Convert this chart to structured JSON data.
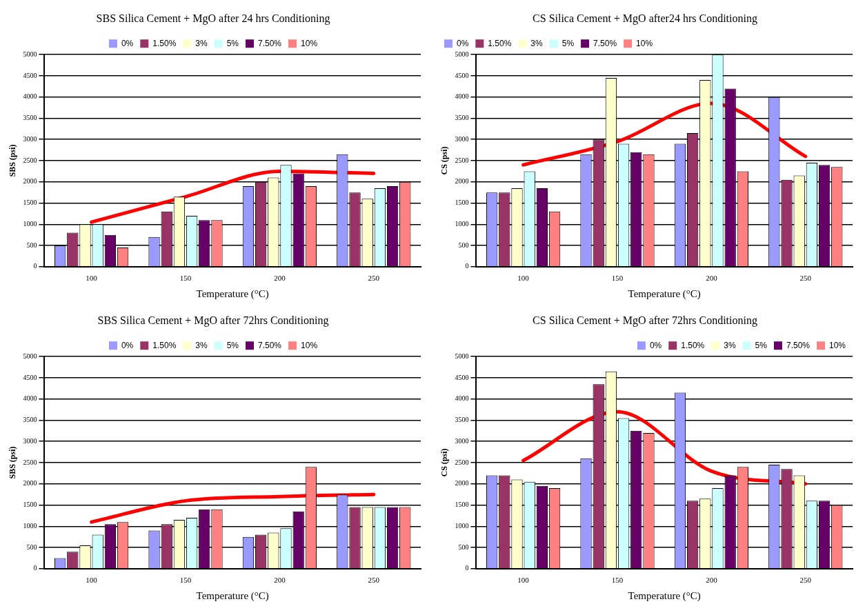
{
  "chart_data": [
    {
      "type": "bar",
      "title": "SBS Silica Cement + MgO after 24 hrs Conditioning",
      "xlabel": "Temperature (°C)",
      "ylabel": "SBS (psi)",
      "categories": [
        "100",
        "150",
        "200",
        "250"
      ],
      "ylim": [
        0,
        5000
      ],
      "yticks": [
        0,
        500,
        1000,
        1500,
        2000,
        2500,
        3000,
        3500,
        4000,
        4500,
        5000
      ],
      "grid": "y",
      "legend": "top",
      "series": [
        {
          "name": "0%",
          "color": "#9999ff",
          "values": [
            500,
            700,
            1900,
            2650
          ]
        },
        {
          "name": "1.50%",
          "color": "#993366",
          "values": [
            800,
            1300,
            2000,
            1750
          ]
        },
        {
          "name": "3%",
          "color": "#ffffcc",
          "values": [
            1000,
            1650,
            2100,
            1600
          ]
        },
        {
          "name": "5%",
          "color": "#ccffff",
          "values": [
            1000,
            1200,
            2400,
            1850
          ]
        },
        {
          "name": "7.50%",
          "color": "#660066",
          "values": [
            750,
            1100,
            2200,
            1900
          ]
        },
        {
          "name": "10%",
          "color": "#ff8080",
          "values": [
            450,
            1100,
            1900,
            2000
          ]
        },
        {
          "type": "line",
          "color": "#ff0000",
          "values": [
            1050,
            1650,
            2250,
            2200
          ]
        }
      ]
    },
    {
      "type": "bar",
      "title": "CS Silica Cement + MgO after24 hrs Conditioning",
      "xlabel": "Temperature (°C)",
      "ylabel": "CS (psi)",
      "categories": [
        "100",
        "150",
        "200",
        "250"
      ],
      "ylim": [
        0,
        5000
      ],
      "yticks": [
        0,
        500,
        1000,
        1500,
        2000,
        2500,
        3000,
        3500,
        4000,
        4500,
        5000
      ],
      "grid": "y",
      "legend": "top left",
      "series": [
        {
          "name": "0%",
          "color": "#9999ff",
          "values": [
            1750,
            2650,
            2900,
            4000
          ]
        },
        {
          "name": "1.50%",
          "color": "#993366",
          "values": [
            1750,
            3000,
            3150,
            2050
          ]
        },
        {
          "name": "3%",
          "color": "#ffffcc",
          "values": [
            1850,
            4450,
            4400,
            2150
          ]
        },
        {
          "name": "5%",
          "color": "#ccffff",
          "values": [
            2250,
            2900,
            5000,
            2450
          ]
        },
        {
          "name": "7.50%",
          "color": "#660066",
          "values": [
            1850,
            2700,
            4200,
            2400
          ]
        },
        {
          "name": "10%",
          "color": "#ff8080",
          "values": [
            1300,
            2650,
            2250,
            2350
          ]
        },
        {
          "type": "line",
          "color": "#ff0000",
          "values": [
            2400,
            2950,
            3850,
            2600
          ]
        }
      ]
    },
    {
      "type": "bar",
      "title": "SBS Silica Cement + MgO after 72hrs Conditioning",
      "xlabel": "Temperature (°C)",
      "ylabel": "SBS (psi)",
      "categories": [
        "100",
        "150",
        "200",
        "250"
      ],
      "ylim": [
        0,
        5000
      ],
      "yticks": [
        0,
        500,
        1000,
        1500,
        2000,
        2500,
        3000,
        3500,
        4000,
        4500,
        5000
      ],
      "grid": "y",
      "legend": "top",
      "series": [
        {
          "name": "0%",
          "color": "#9999ff",
          "values": [
            250,
            900,
            750,
            1750
          ]
        },
        {
          "name": "1.50%",
          "color": "#993366",
          "values": [
            400,
            1050,
            800,
            1450
          ]
        },
        {
          "name": "3%",
          "color": "#ffffcc",
          "values": [
            550,
            1150,
            850,
            1450
          ]
        },
        {
          "name": "5%",
          "color": "#ccffff",
          "values": [
            800,
            1200,
            950,
            1450
          ]
        },
        {
          "name": "7.50%",
          "color": "#660066",
          "values": [
            1050,
            1400,
            1350,
            1450
          ]
        },
        {
          "name": "10%",
          "color": "#ff8080",
          "values": [
            1100,
            1400,
            2400,
            1450
          ]
        },
        {
          "type": "line",
          "color": "#ff0000",
          "values": [
            1100,
            1600,
            1700,
            1750
          ]
        }
      ]
    },
    {
      "type": "bar",
      "title": "CS Silica Cement + MgO after 72hrs Conditioning",
      "xlabel": "Temperature (°C)",
      "ylabel": "CS (psi)",
      "categories": [
        "100",
        "150",
        "200",
        "250"
      ],
      "ylim": [
        0,
        5000
      ],
      "yticks": [
        0,
        500,
        1000,
        1500,
        2000,
        2500,
        3000,
        3500,
        4000,
        4500,
        5000
      ],
      "grid": "y",
      "legend": "top right",
      "series": [
        {
          "name": "0%",
          "color": "#9999ff",
          "values": [
            2200,
            2600,
            4150,
            2450
          ]
        },
        {
          "name": "1.50%",
          "color": "#993366",
          "values": [
            2200,
            4350,
            1600,
            2350
          ]
        },
        {
          "name": "3%",
          "color": "#ffffcc",
          "values": [
            2100,
            4650,
            1650,
            2200
          ]
        },
        {
          "name": "5%",
          "color": "#ccffff",
          "values": [
            2050,
            3550,
            1900,
            1600
          ]
        },
        {
          "name": "7.50%",
          "color": "#660066",
          "values": [
            1950,
            3250,
            2200,
            1600
          ]
        },
        {
          "name": "10%",
          "color": "#ff8080",
          "values": [
            1900,
            3200,
            2400,
            1500
          ]
        },
        {
          "type": "line",
          "color": "#ff0000",
          "values": [
            2550,
            3700,
            2300,
            2000
          ]
        }
      ]
    }
  ]
}
